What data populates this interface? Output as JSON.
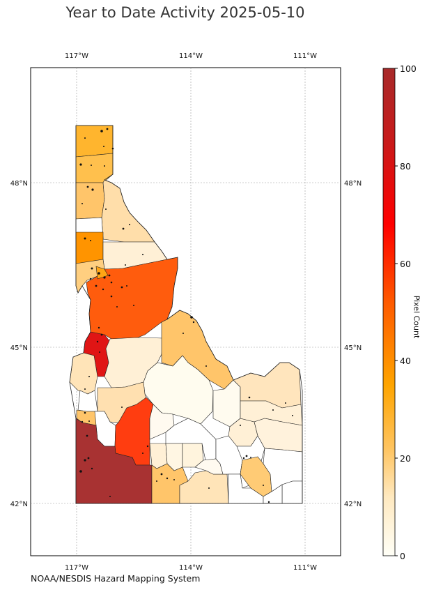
{
  "title": "Year to Date Activity 2025-05-10",
  "credit": "NOAA/NESDIS Hazard Mapping System",
  "colorbar": {
    "label": "Pixel Count",
    "ticks": [
      "0",
      "20",
      "40",
      "60",
      "80",
      "100"
    ],
    "colors": [
      "#fffff7",
      "#ffe9c0",
      "#ffc460",
      "#ffa500",
      "#ff5a00",
      "#ff0000",
      "#c81a1a",
      "#a82a2a"
    ]
  },
  "axes": {
    "lon_labels": [
      "117°W",
      "114°W",
      "111°W"
    ],
    "lat_labels": [
      "48°N",
      "45°N",
      "42°N"
    ]
  },
  "region_colors": {
    "north_top": "#ffb52e",
    "north_2": "#ffc04d",
    "north_3": "#ffcb70",
    "latah": "#ffffff",
    "nez_perce": "#ff9400",
    "clearwater": "#ffdca6",
    "idaho_county": "#ff5c0d",
    "adams": "#e01515",
    "washington": "#ffe4b8",
    "lemhi": "#ffc56a",
    "owyhee": "#a83232",
    "elmore": "#ff3d10",
    "twin_falls": "#ffc56a",
    "pale": "#fff0d6",
    "white": "#ffffff"
  }
}
